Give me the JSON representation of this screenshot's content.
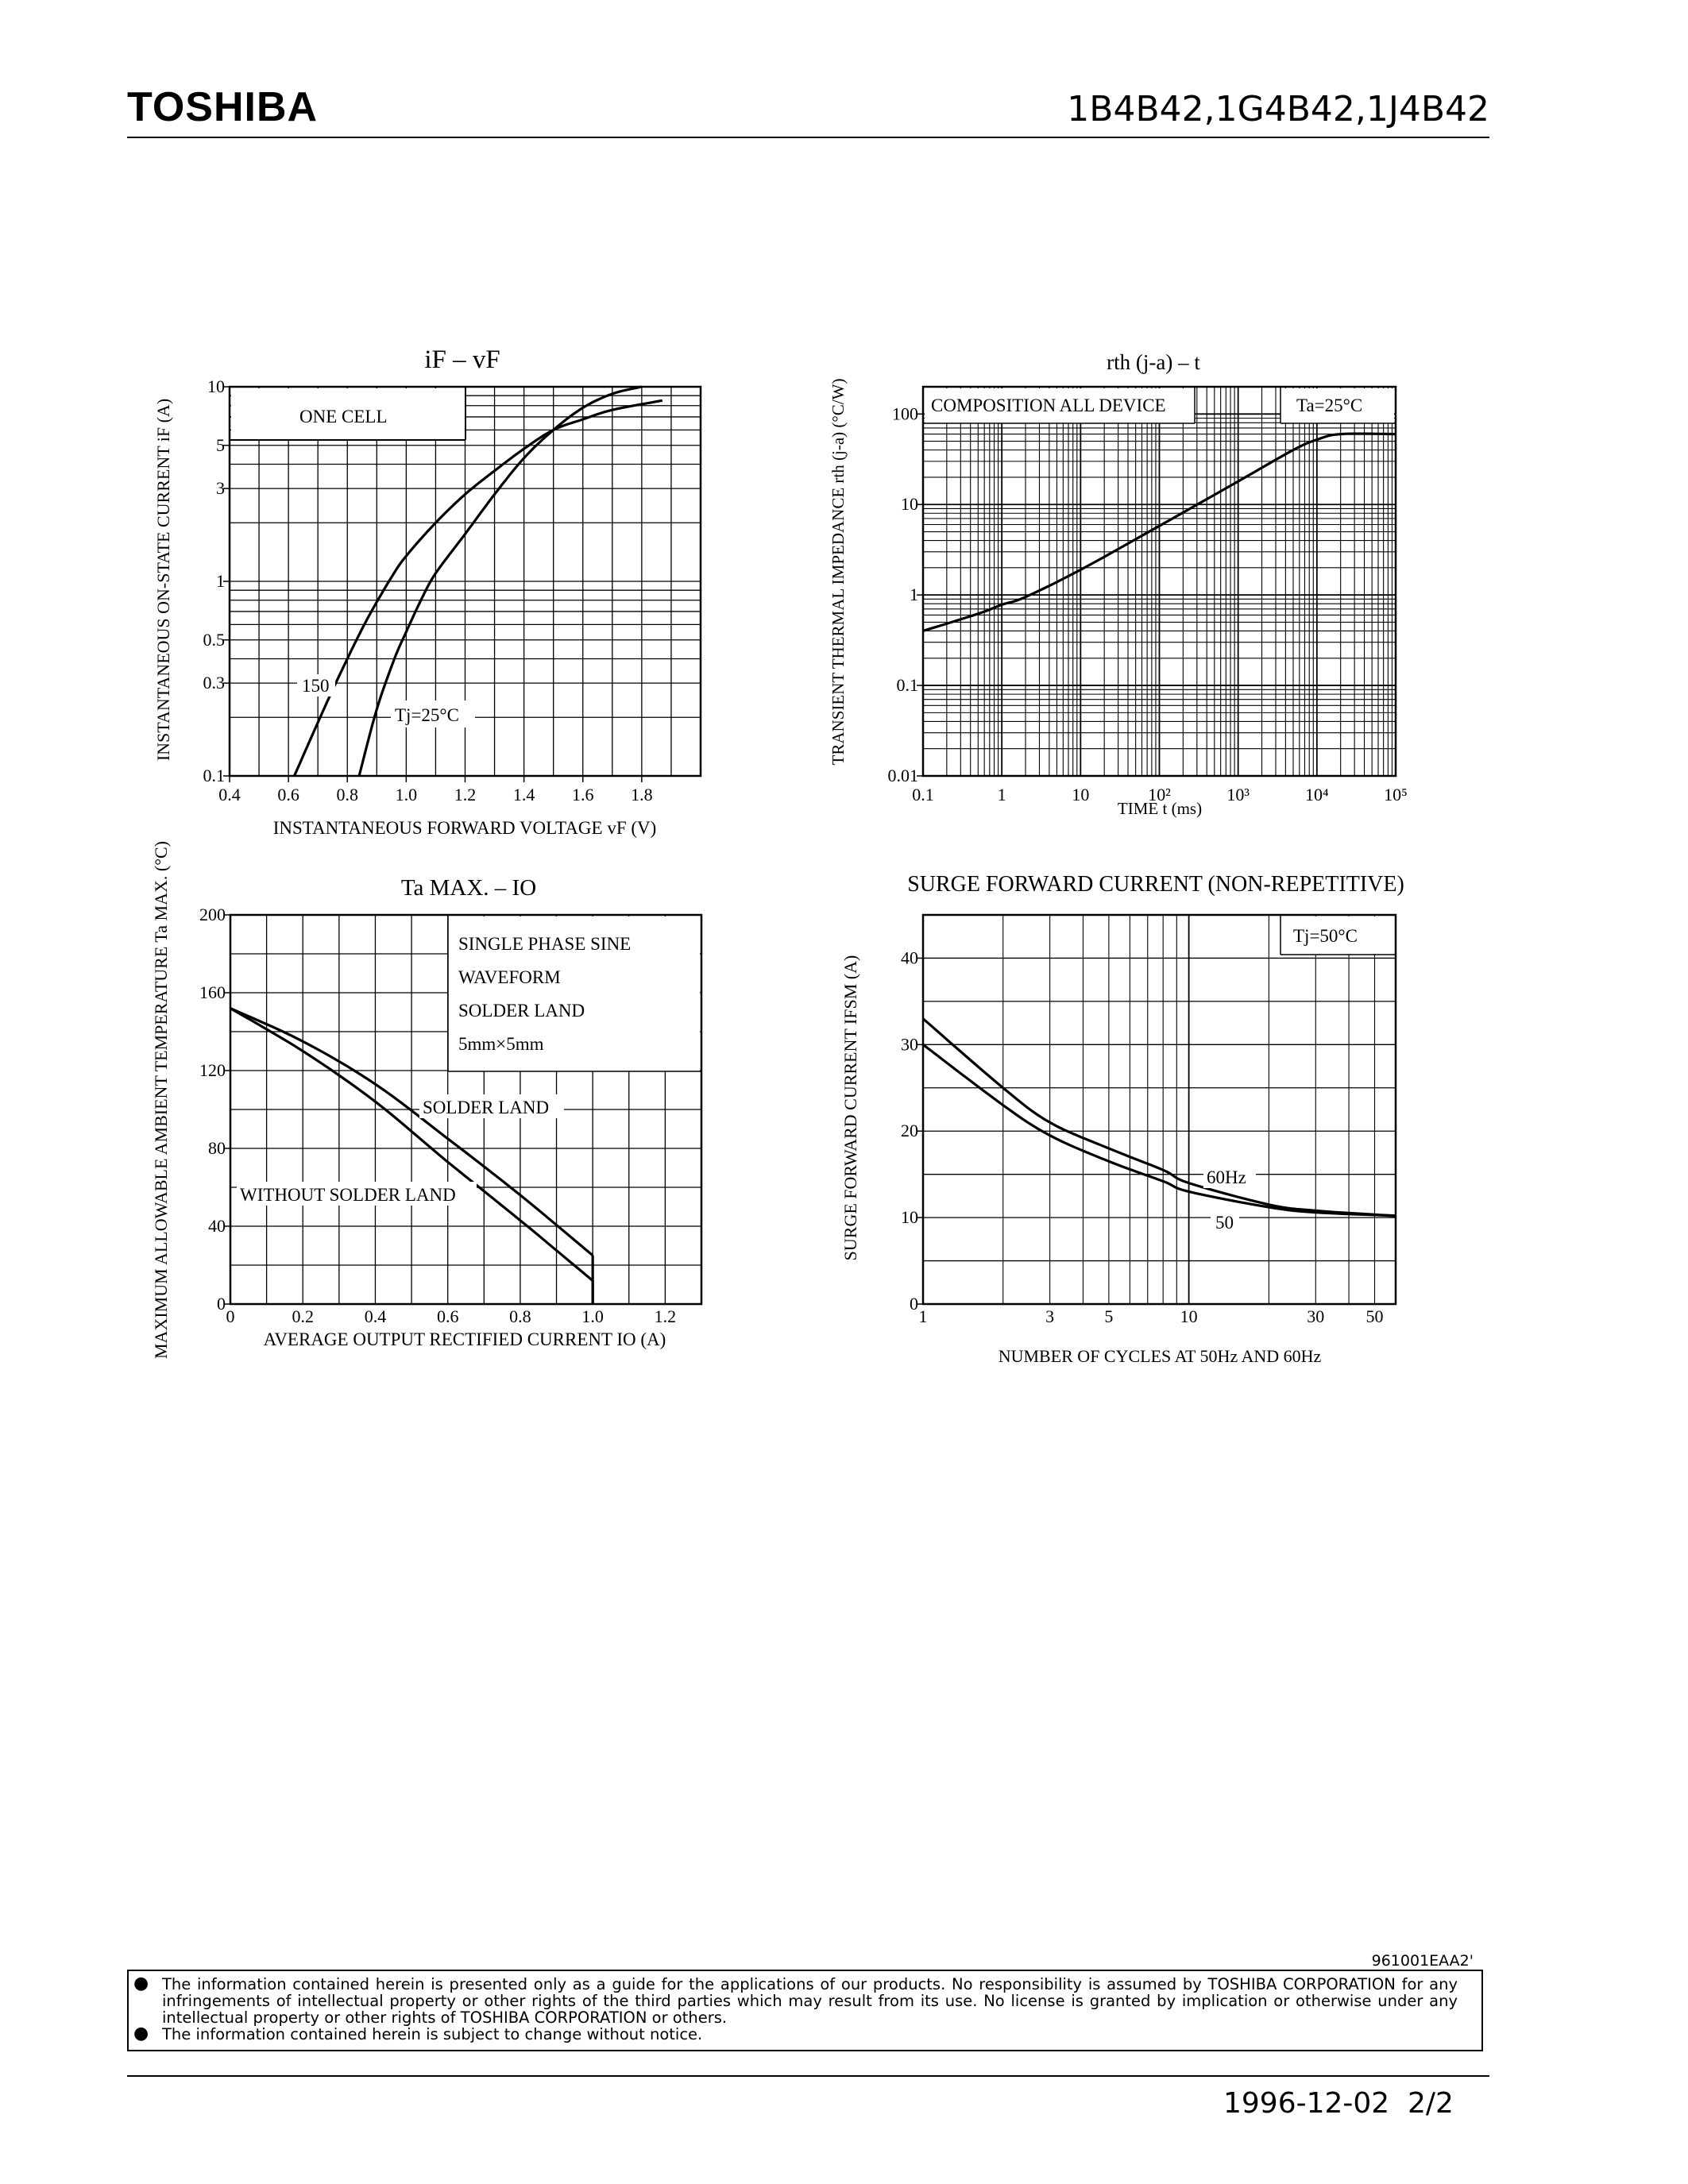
{
  "header": {
    "brand": "TOSHIBA",
    "part_numbers": "1B4B42,1G4B42,1J4B42"
  },
  "chart_data": [
    {
      "type": "line",
      "title": "iF – vF",
      "xlabel": "INSTANTANEOUS FORWARD VOLTAGE vF (V)",
      "ylabel": "INSTANTANEOUS ON-STATE CURRENT iF (A)",
      "x_scale": "linear",
      "y_scale": "log",
      "xlim": [
        0.4,
        2.0
      ],
      "ylim": [
        0.1,
        10
      ],
      "x_ticks": [
        "0.4",
        "0.6",
        "0.8",
        "1.0",
        "1.2",
        "1.4",
        "1.6",
        "1.8"
      ],
      "y_ticks": [
        "10",
        "5",
        "3",
        "1",
        "0.5",
        "0.3",
        "0.1"
      ],
      "annotations": [
        "ONE CELL",
        "150",
        "Tj=25°C"
      ],
      "series": [
        {
          "name": "150",
          "x": [
            0.62,
            0.72,
            0.8,
            0.87,
            0.95,
            1.0,
            1.1,
            1.2,
            1.3,
            1.4,
            1.5,
            1.6,
            1.7,
            1.87
          ],
          "y": [
            0.1,
            0.22,
            0.4,
            0.65,
            1.05,
            1.35,
            2.0,
            2.8,
            3.7,
            4.8,
            6.0,
            6.8,
            7.6,
            8.5
          ]
        },
        {
          "name": "Tj=25°C",
          "x": [
            0.84,
            0.9,
            0.96,
            1.0,
            1.05,
            1.1,
            1.2,
            1.3,
            1.4,
            1.5,
            1.6,
            1.7,
            1.8
          ],
          "y": [
            0.1,
            0.22,
            0.4,
            0.55,
            0.8,
            1.1,
            1.75,
            2.8,
            4.3,
            6.0,
            7.8,
            9.2,
            10.0
          ]
        }
      ]
    },
    {
      "type": "line",
      "title": "rth (j-a) – t",
      "xlabel": "TIME t (ms)",
      "ylabel": "TRANSIENT THERMAL IMPEDANCE rth (j-a) (°C/W)",
      "x_scale": "log",
      "y_scale": "log",
      "xlim": [
        0.1,
        100000
      ],
      "ylim": [
        0.01,
        200
      ],
      "x_ticks": [
        "0.1",
        "1",
        "10",
        "10²",
        "10³",
        "10⁴",
        "10⁵"
      ],
      "y_ticks": [
        "100",
        "10",
        "1",
        "0.1",
        "0.01"
      ],
      "annotations": [
        "COMPOSITION ALL DEVICE",
        "Ta=25°C"
      ],
      "series": [
        {
          "name": "",
          "x": [
            0.1,
            0.5,
            1,
            2,
            10,
            100,
            1000,
            5000,
            10000,
            20000,
            100000
          ],
          "y": [
            0.4,
            0.62,
            0.78,
            0.95,
            1.9,
            5.8,
            18,
            40,
            52,
            60,
            60
          ]
        }
      ]
    },
    {
      "type": "line",
      "title": "Ta MAX. – IO",
      "xlabel": "AVERAGE OUTPUT RECTIFIED CURRENT IO (A)",
      "ylabel": "MAXIMUM ALLOWABLE AMBIENT TEMPERATURE Ta MAX. (°C)",
      "x_scale": "linear",
      "y_scale": "linear",
      "xlim": [
        0,
        1.3
      ],
      "ylim": [
        0,
        200
      ],
      "x_ticks": [
        "0",
        "0.2",
        "0.4",
        "0.6",
        "0.8",
        "1.0",
        "1.2"
      ],
      "y_ticks": [
        "200",
        "160",
        "120",
        "80",
        "40",
        "0"
      ],
      "annotations": [
        "SINGLE PHASE SINE",
        "WAVEFORM",
        "SOLDER LAND",
        "5mm×5mm",
        "SOLDER LAND",
        "WITHOUT SOLDER LAND"
      ],
      "series": [
        {
          "name": "SOLDER LAND",
          "x": [
            0,
            0.2,
            0.4,
            0.6,
            0.8,
            1.0
          ],
          "y": [
            152,
            135,
            113,
            85,
            56,
            25
          ]
        },
        {
          "name": "WITHOUT SOLDER LAND",
          "x": [
            0,
            0.2,
            0.4,
            0.6,
            0.8,
            1.0
          ],
          "y": [
            152,
            130,
            104,
            73,
            43,
            12
          ]
        }
      ]
    },
    {
      "type": "line",
      "title": "SURGE FORWARD CURRENT (NON-REPETITIVE)",
      "xlabel": "NUMBER OF CYCLES AT 50Hz AND 60Hz",
      "ylabel": "SURGE FORWARD CURRENT IFSM (A)",
      "x_scale": "log",
      "y_scale": "linear",
      "xlim": [
        1,
        60
      ],
      "ylim": [
        0,
        45
      ],
      "x_ticks": [
        "1",
        "3",
        "5",
        "10",
        "30",
        "50"
      ],
      "y_ticks": [
        "40",
        "30",
        "20",
        "10",
        "0"
      ],
      "annotations": [
        "Tj=50°C",
        "60Hz",
        "50"
      ],
      "series": [
        {
          "name": "60Hz",
          "x": [
            1,
            2,
            3,
            5,
            8,
            10,
            20,
            30,
            60
          ],
          "y": [
            33,
            25,
            21,
            18,
            15.5,
            14,
            11.5,
            10.8,
            10.2
          ]
        },
        {
          "name": "50",
          "x": [
            1,
            2,
            3,
            5,
            8,
            10,
            20,
            30,
            60
          ],
          "y": [
            30,
            23,
            19.5,
            16.5,
            14.2,
            13,
            11.2,
            10.6,
            10.2
          ]
        }
      ]
    }
  ],
  "footer": {
    "doc_code": "961001EAA2'",
    "disclaimer_1": "The information contained herein is presented only as a guide for the applications of our products. No responsibility is assumed by TOSHIBA CORPORATION for any infringements of intellectual property or other rights of the third parties which may result from its use. No license is granted by implication or otherwise under any intellectual property or other rights of TOSHIBA CORPORATION or others.",
    "disclaimer_2": "The information contained herein is subject to change without notice.",
    "date": "1996-12-02",
    "page": "2/2"
  }
}
